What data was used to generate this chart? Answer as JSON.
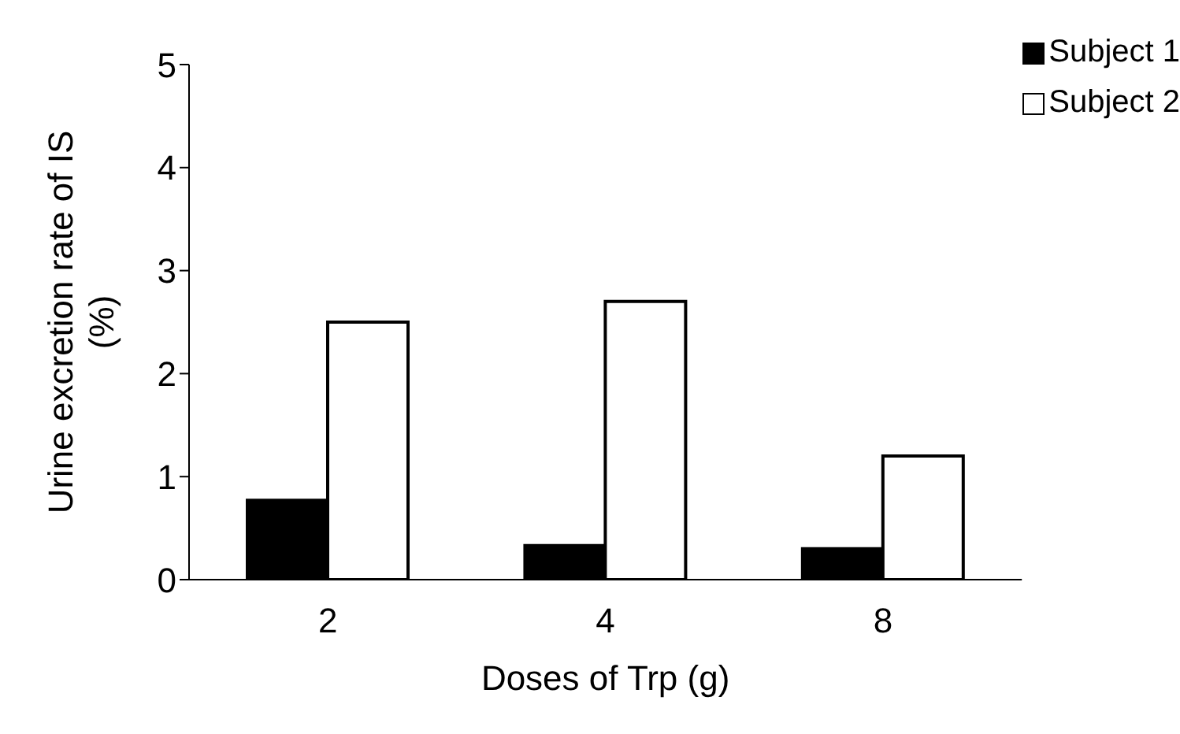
{
  "chart_data": {
    "type": "bar",
    "xlabel": "Doses of Trp (g)",
    "ylabel": "Urine excretion rate of IS (%)",
    "categories": [
      "2",
      "4",
      "8"
    ],
    "series": [
      {
        "name": "Subject 1",
        "color": "#000000",
        "values": [
          0.77,
          0.33,
          0.3
        ]
      },
      {
        "name": "Subject 2",
        "color": "#ffffff",
        "values": [
          2.5,
          2.7,
          1.2
        ]
      }
    ],
    "ylim": [
      0,
      5
    ],
    "yticks": [
      0,
      1,
      2,
      3,
      4,
      5
    ],
    "grid": false,
    "legend": "top right"
  }
}
